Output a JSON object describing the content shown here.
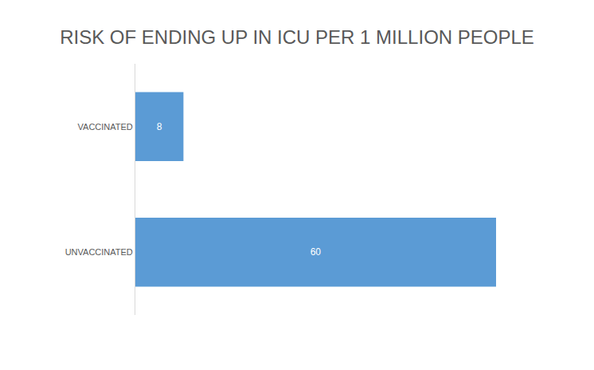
{
  "chart_data": {
    "type": "bar",
    "title": "RISK OF ENDING UP IN ICU PER 1 MILLION PEOPLE",
    "categories": [
      "VACCINATED",
      "UNVACCINATED"
    ],
    "values": [
      8,
      60
    ],
    "color": "#5b9bd5",
    "orientation": "horizontal",
    "xlim": [
      0,
      60
    ],
    "grid": false,
    "data_labels": true,
    "tick_labels": "y"
  }
}
